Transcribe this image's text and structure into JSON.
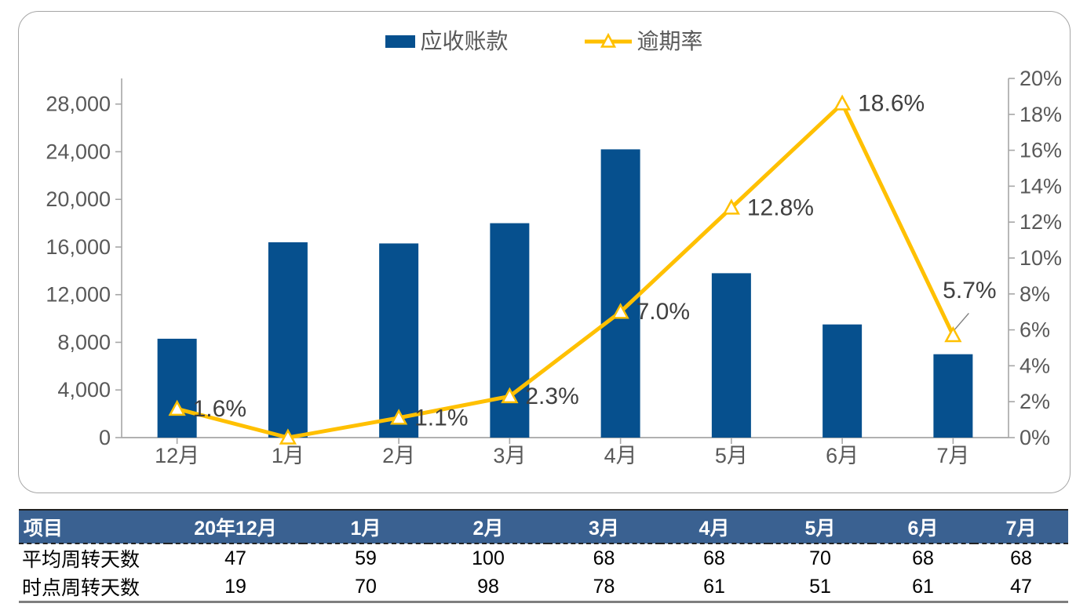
{
  "chart_data": {
    "type": "combo-bar-line",
    "categories": [
      "12月",
      "1月",
      "2月",
      "3月",
      "4月",
      "5月",
      "6月",
      "7月"
    ],
    "series": [
      {
        "name": "应收账款",
        "type": "bar",
        "axis": "left",
        "color": "#06508E",
        "values": [
          8300,
          16400,
          16300,
          18000,
          24200,
          13800,
          9500,
          7000
        ]
      },
      {
        "name": "逾期率",
        "type": "line",
        "axis": "right",
        "color": "#FFC000",
        "marker": "triangle-outline",
        "values": [
          1.6,
          0.0,
          1.1,
          2.3,
          7.0,
          12.8,
          18.6,
          5.7
        ],
        "point_labels": [
          "1.6%",
          "",
          "1.1%",
          "2.3%",
          "7.0%",
          "12.8%",
          "18.6%",
          "5.7%"
        ],
        "last_label_has_leader_line": true
      }
    ],
    "left_axis": {
      "tick_labels": [
        "0",
        "4,000",
        "8,000",
        "12,000",
        "16,000",
        "20,000",
        "24,000",
        "28,000"
      ],
      "tick_step": 4000,
      "min": 0,
      "max": 30150
    },
    "right_axis": {
      "tick_labels": [
        "0%",
        "2%",
        "4%",
        "6%",
        "8%",
        "10%",
        "12%",
        "14%",
        "16%",
        "18%",
        "20%"
      ],
      "tick_step": 2,
      "min": 0,
      "max": 20
    },
    "grid": "off",
    "legend_position": "top-center",
    "colors": {
      "axis_line": "#A6A6A6",
      "axis_text": "#595959",
      "data_label_text": "#404040",
      "leader_line": "#7F7F7F"
    }
  },
  "table": {
    "headers": [
      "项目",
      "20年12月",
      "1月",
      "2月",
      "3月",
      "4月",
      "5月",
      "6月",
      "7月"
    ],
    "rows": [
      {
        "label": "平均周转天数",
        "values": [
          "47",
          "59",
          "100",
          "68",
          "68",
          "70",
          "68",
          "68"
        ]
      },
      {
        "label": "时点周转天数",
        "values": [
          "19",
          "70",
          "98",
          "78",
          "61",
          "51",
          "61",
          "47"
        ]
      }
    ],
    "header_bg": "#3A6191",
    "header_text_color": "#FFFFFF"
  }
}
